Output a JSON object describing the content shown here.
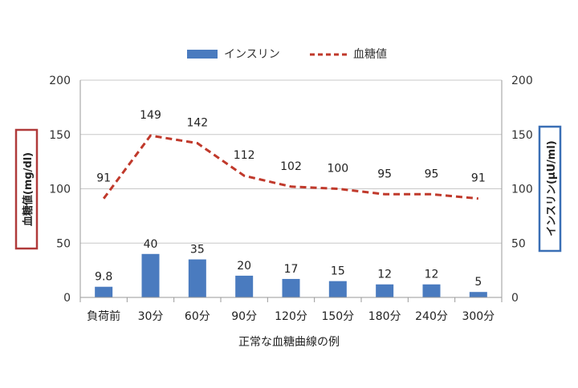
{
  "chart_data": {
    "type": "bar",
    "categories": [
      "負荷前",
      "30分",
      "60分",
      "90分",
      "120分",
      "150分",
      "180分",
      "240分",
      "300分"
    ],
    "series": [
      {
        "name": "インスリン",
        "kind": "bar",
        "axis": "right",
        "color": "#4a7bbf",
        "values": [
          9.8,
          40,
          35,
          20,
          17,
          15,
          12,
          12,
          5
        ],
        "labels": [
          "9.8",
          "40",
          "35",
          "20",
          "17",
          "15",
          "12",
          "12",
          "5"
        ]
      },
      {
        "name": "血糖値",
        "kind": "line",
        "line_style": "dashed",
        "axis": "left",
        "color": "#c0392b",
        "values": [
          91,
          149,
          142,
          112,
          102,
          100,
          95,
          95,
          91
        ],
        "labels": [
          "91",
          "149",
          "142",
          "112",
          "102",
          "100",
          "95",
          "95",
          "91"
        ]
      }
    ],
    "xlabel": "正常な血糖曲線の例",
    "ylabel": "血糖値(mg/dl)",
    "y2label": "インスリン(μU/ml)",
    "ylim": [
      0,
      200
    ],
    "y2lim": [
      0,
      200
    ],
    "yticks": [
      0,
      50,
      100,
      150,
      200
    ],
    "y2ticks": [
      0,
      50,
      100,
      150,
      200
    ],
    "grid": true,
    "legend_position": "top",
    "ylabel_box_color": "#b03a3a",
    "y2label_box_color": "#3a6fb5"
  }
}
